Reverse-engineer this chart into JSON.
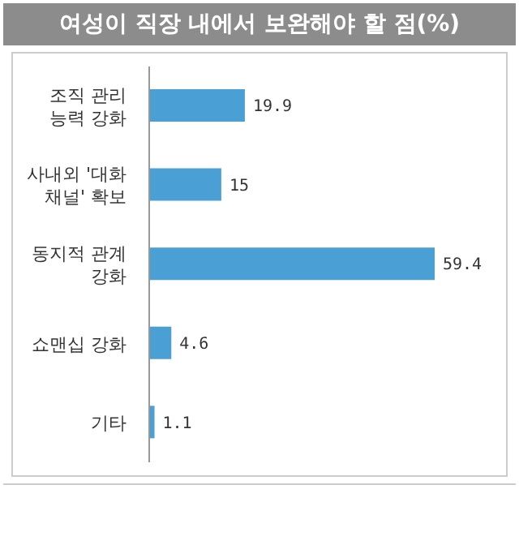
{
  "chart_data": {
    "type": "bar",
    "orientation": "horizontal",
    "title": "여성이 직장 내에서 보완해야 할 점(%)",
    "categories": [
      "조직 관리\n능력 강화",
      "사내외 '대화\n채널' 확보",
      "동지적 관계\n강화",
      "쇼맨십 강화",
      "기타"
    ],
    "values": [
      19.9,
      15,
      59.4,
      4.6,
      1.1
    ],
    "color": "#4a9fd4",
    "data_labels": true
  }
}
